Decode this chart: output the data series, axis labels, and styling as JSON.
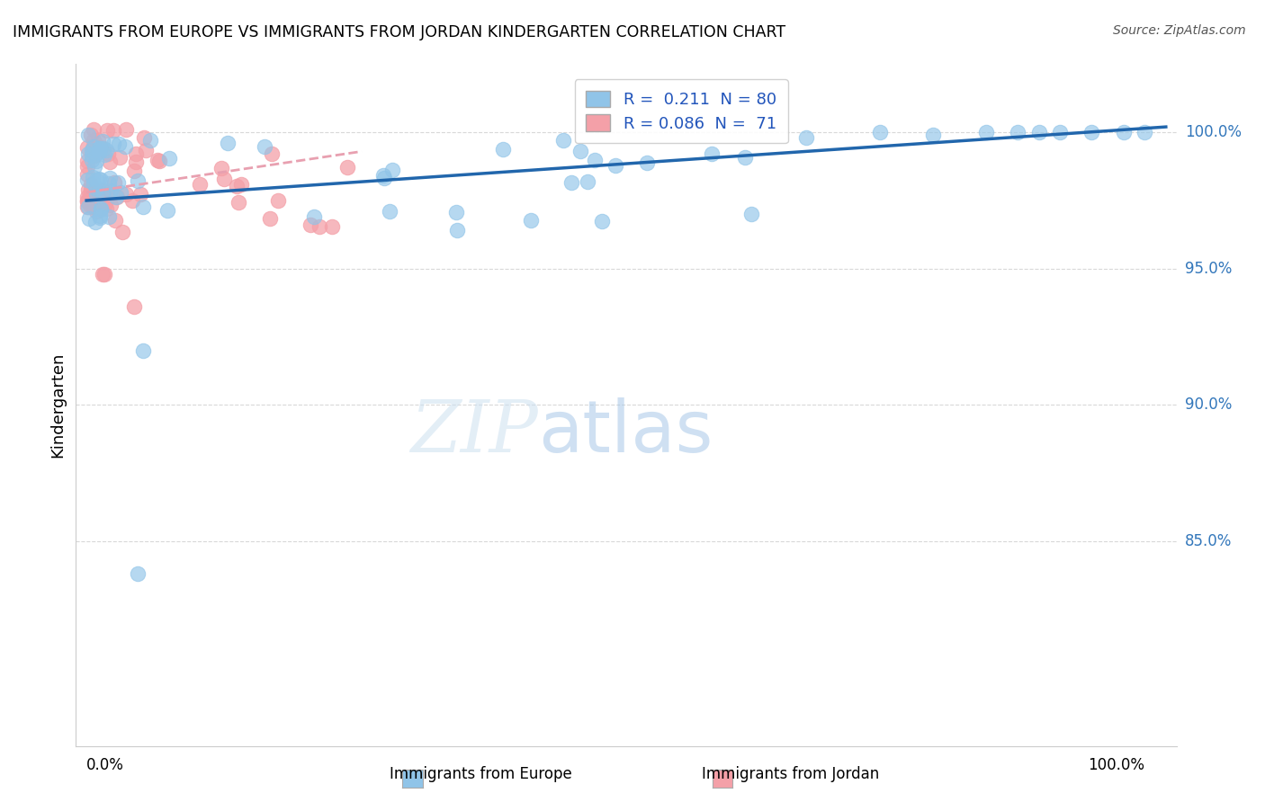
{
  "title": "IMMIGRANTS FROM EUROPE VS IMMIGRANTS FROM JORDAN KINDERGARTEN CORRELATION CHART",
  "source": "Source: ZipAtlas.com",
  "ylabel": "Kindergarten",
  "blue_R": 0.211,
  "blue_N": 80,
  "pink_R": 0.086,
  "pink_N": 71,
  "blue_color": "#90c4e8",
  "pink_color": "#f4a0a8",
  "line_blue_color": "#2166ac",
  "line_pink_color": "#e8a0b0",
  "legend_label_blue": "Immigrants from Europe",
  "legend_label_pink": "Immigrants from Jordan",
  "watermark_zip": "ZIP",
  "watermark_atlas": "atlas",
  "background_color": "#ffffff",
  "grid_color": "#d8d8d8",
  "ytick_values": [
    0.85,
    0.9,
    0.95,
    1.0
  ],
  "ytick_labels": [
    "85.0%",
    "90.0%",
    "95.0%",
    "100.0%"
  ],
  "xlim_min": -0.01,
  "xlim_max": 1.03,
  "ylim_min": 0.775,
  "ylim_max": 1.025,
  "blue_trend_x0": 0.0,
  "blue_trend_x1": 1.02,
  "blue_trend_y0": 0.975,
  "blue_trend_y1": 1.002,
  "pink_trend_x0": 0.0,
  "pink_trend_x1": 0.26,
  "pink_trend_y0": 0.978,
  "pink_trend_y1": 0.993
}
